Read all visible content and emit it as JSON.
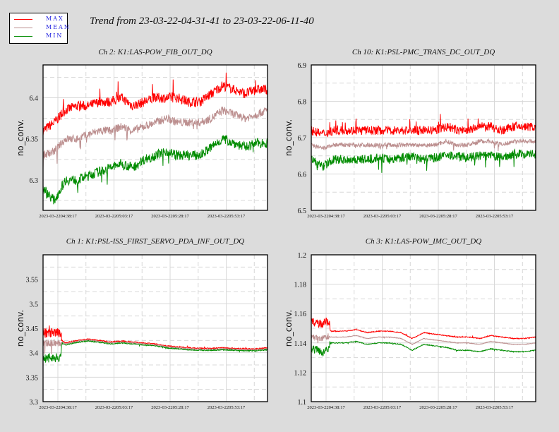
{
  "title": "Trend from 23-03-22-04-31-41 to 23-03-22-06-11-40",
  "legend": [
    {
      "label": "MAX",
      "color": "#ff0000"
    },
    {
      "label": "MEAN",
      "color": "#bc8f8f"
    },
    {
      "label": "MIN",
      "color": "#008c00"
    }
  ],
  "chart_data": [
    {
      "type": "line",
      "title": "Ch 2: K1:LAS-POW_FIB_OUT_DQ",
      "ylabel": "no_conv.",
      "ylim": [
        6.263,
        6.44
      ],
      "yticks": [
        6.3,
        6.35,
        6.4
      ],
      "ytick_labels": [
        "6.3",
        "6.35",
        "6.4"
      ],
      "xlim": [
        "2023-03-22 04:31:41",
        "2023-03-22 06:11:40"
      ],
      "xtick_labels": [
        "2023-03-22 04:38:17",
        "2023-03-22 05:03:17",
        "2023-03-22 05:28:17",
        "2023-03-22 05:53:17"
      ],
      "x_minutes_from_start": [
        0,
        5,
        10,
        15,
        20,
        25,
        30,
        35,
        40,
        45,
        50,
        55,
        60,
        65,
        70,
        75,
        80,
        85,
        90,
        95,
        100
      ],
      "grid": true,
      "series": [
        {
          "name": "MAX",
          "values": [
            6.36,
            6.37,
            6.385,
            6.39,
            6.39,
            6.395,
            6.395,
            6.4,
            6.39,
            6.395,
            6.4,
            6.4,
            6.4,
            6.395,
            6.395,
            6.405,
            6.415,
            6.41,
            6.405,
            6.41,
            6.41
          ]
        },
        {
          "name": "MEAN",
          "values": [
            6.33,
            6.335,
            6.35,
            6.35,
            6.355,
            6.36,
            6.36,
            6.365,
            6.36,
            6.365,
            6.37,
            6.375,
            6.37,
            6.37,
            6.37,
            6.375,
            6.385,
            6.38,
            6.375,
            6.38,
            6.385
          ]
        },
        {
          "name": "MIN",
          "values": [
            6.29,
            6.275,
            6.3,
            6.3,
            6.305,
            6.31,
            6.315,
            6.32,
            6.315,
            6.325,
            6.33,
            6.335,
            6.33,
            6.33,
            6.33,
            6.34,
            6.35,
            6.345,
            6.34,
            6.345,
            6.345
          ]
        }
      ]
    },
    {
      "type": "line",
      "title": "Ch 10: K1:PSL-PMC_TRANS_DC_OUT_DQ",
      "ylabel": "no_conv.",
      "ylim": [
        6.5,
        6.9
      ],
      "yticks": [
        6.5,
        6.6,
        6.7,
        6.8,
        6.9
      ],
      "ytick_labels": [
        "6.5",
        "6.6",
        "6.7",
        "6.8",
        "6.9"
      ],
      "xlim": [
        "2023-03-22 04:31:41",
        "2023-03-22 06:11:40"
      ],
      "xtick_labels": [
        "2023-03-22 04:38:17",
        "2023-03-22 05:03:17",
        "2023-03-22 05:28:17",
        "2023-03-22 05:53:17"
      ],
      "x_minutes_from_start": [
        0,
        5,
        10,
        15,
        20,
        25,
        30,
        35,
        40,
        45,
        50,
        55,
        60,
        65,
        70,
        75,
        80,
        85,
        90,
        95,
        100
      ],
      "grid": true,
      "series": [
        {
          "name": "MAX",
          "values": [
            6.72,
            6.71,
            6.72,
            6.72,
            6.72,
            6.72,
            6.72,
            6.72,
            6.72,
            6.72,
            6.72,
            6.72,
            6.73,
            6.72,
            6.72,
            6.73,
            6.73,
            6.72,
            6.73,
            6.73,
            6.73
          ]
        },
        {
          "name": "MEAN",
          "values": [
            6.68,
            6.67,
            6.68,
            6.68,
            6.68,
            6.68,
            6.68,
            6.68,
            6.68,
            6.68,
            6.68,
            6.68,
            6.69,
            6.68,
            6.68,
            6.69,
            6.69,
            6.68,
            6.69,
            6.69,
            6.69
          ]
        },
        {
          "name": "MIN",
          "values": [
            6.64,
            6.62,
            6.64,
            6.64,
            6.64,
            6.64,
            6.645,
            6.64,
            6.645,
            6.65,
            6.64,
            6.645,
            6.65,
            6.65,
            6.645,
            6.65,
            6.65,
            6.645,
            6.655,
            6.655,
            6.655
          ]
        }
      ]
    },
    {
      "type": "line",
      "title": "Ch 1: K1:PSL-ISS_FIRST_SERVO_PDA_INF_OUT_DQ",
      "ylabel": "no_conv.",
      "ylim": [
        3.3,
        3.6
      ],
      "yticks": [
        3.3,
        3.35,
        3.4,
        3.45,
        3.5,
        3.55
      ],
      "ytick_labels": [
        "3.3",
        "3.35",
        "3.4",
        "3.45",
        "3.5",
        "3.55"
      ],
      "xlim": [
        "2023-03-22 04:31:41",
        "2023-03-22 06:11:40"
      ],
      "xtick_labels": [
        "2023-03-22 04:38:17",
        "2023-03-22 05:03:17",
        "2023-03-22 05:28:17",
        "2023-03-22 05:53:17"
      ],
      "x_minutes_from_start": [
        0,
        5,
        8,
        8.5,
        10,
        15,
        20,
        25,
        30,
        35,
        40,
        45,
        50,
        55,
        60,
        65,
        70,
        75,
        80,
        85,
        90,
        95,
        100
      ],
      "grid": true,
      "series": [
        {
          "name": "MAX",
          "values": [
            3.44,
            3.44,
            3.44,
            3.425,
            3.42,
            3.425,
            3.428,
            3.425,
            3.422,
            3.424,
            3.422,
            3.42,
            3.418,
            3.414,
            3.412,
            3.41,
            3.409,
            3.409,
            3.41,
            3.409,
            3.408,
            3.408,
            3.41
          ]
        },
        {
          "name": "MEAN",
          "values": [
            3.42,
            3.42,
            3.42,
            3.422,
            3.418,
            3.423,
            3.426,
            3.423,
            3.42,
            3.422,
            3.42,
            3.418,
            3.416,
            3.412,
            3.41,
            3.408,
            3.407,
            3.407,
            3.408,
            3.407,
            3.406,
            3.406,
            3.408
          ]
        },
        {
          "name": "MIN",
          "values": [
            3.39,
            3.39,
            3.39,
            3.42,
            3.416,
            3.421,
            3.424,
            3.421,
            3.418,
            3.42,
            3.418,
            3.416,
            3.414,
            3.41,
            3.408,
            3.406,
            3.405,
            3.405,
            3.406,
            3.405,
            3.404,
            3.404,
            3.406
          ]
        }
      ]
    },
    {
      "type": "line",
      "title": "Ch 3: K1:LAS-POW_IMC_OUT_DQ",
      "ylabel": "no_conv.",
      "ylim": [
        1.1,
        1.2
      ],
      "yticks": [
        1.1,
        1.12,
        1.14,
        1.16,
        1.18,
        1.2
      ],
      "ytick_labels": [
        "1.1",
        "1.12",
        "1.14",
        "1.16",
        "1.18",
        "1.2"
      ],
      "xlim": [
        "2023-03-22 04:31:41",
        "2023-03-22 06:11:40"
      ],
      "xtick_labels": [
        "2023-03-22 04:38:17",
        "2023-03-22 05:03:17",
        "2023-03-22 05:28:17",
        "2023-03-22 05:53:17"
      ],
      "x_minutes_from_start": [
        0,
        5,
        8,
        8.5,
        10,
        15,
        20,
        25,
        30,
        35,
        40,
        45,
        50,
        55,
        60,
        65,
        70,
        75,
        80,
        85,
        90,
        95,
        100
      ],
      "grid": true,
      "series": [
        {
          "name": "MAX",
          "values": [
            1.154,
            1.153,
            1.155,
            1.148,
            1.148,
            1.148,
            1.149,
            1.147,
            1.148,
            1.148,
            1.147,
            1.143,
            1.147,
            1.146,
            1.145,
            1.144,
            1.144,
            1.143,
            1.145,
            1.144,
            1.143,
            1.143,
            1.144
          ]
        },
        {
          "name": "MEAN",
          "values": [
            1.144,
            1.143,
            1.145,
            1.144,
            1.144,
            1.144,
            1.145,
            1.143,
            1.144,
            1.144,
            1.143,
            1.139,
            1.143,
            1.142,
            1.141,
            1.14,
            1.14,
            1.139,
            1.141,
            1.14,
            1.139,
            1.139,
            1.14
          ]
        },
        {
          "name": "MIN",
          "values": [
            1.136,
            1.134,
            1.136,
            1.14,
            1.14,
            1.14,
            1.141,
            1.139,
            1.14,
            1.14,
            1.139,
            1.135,
            1.139,
            1.138,
            1.137,
            1.135,
            1.135,
            1.134,
            1.136,
            1.135,
            1.134,
            1.134,
            1.135
          ]
        }
      ]
    }
  ]
}
